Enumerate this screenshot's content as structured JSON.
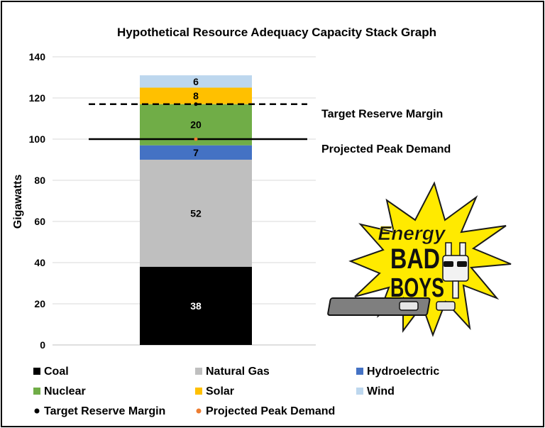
{
  "chart_data": {
    "type": "bar",
    "stacked": true,
    "title": "Hypothetical Resource Adequacy Capacity Stack Graph",
    "ylabel": "Gigawatts",
    "xlabel": "",
    "ylim": [
      0,
      140
    ],
    "yticks": [
      0,
      20,
      40,
      60,
      80,
      100,
      120,
      140
    ],
    "grid": true,
    "legend_position": "bottom",
    "series": [
      {
        "name": "Coal",
        "value": 38,
        "color": "#000000",
        "label_color": "#ffffff"
      },
      {
        "name": "Natural Gas",
        "value": 52,
        "color": "#bfbfbf",
        "label_color": "#000000"
      },
      {
        "name": "Hydroelectric",
        "value": 7,
        "color": "#4472c4",
        "label_color": "#000000"
      },
      {
        "name": "Nuclear",
        "value": 20,
        "color": "#70ad47",
        "label_color": "#000000"
      },
      {
        "name": "Solar",
        "value": 8,
        "color": "#ffc000",
        "label_color": "#000000"
      },
      {
        "name": "Wind",
        "value": 6,
        "color": "#bdd7ee",
        "label_color": "#000000"
      }
    ],
    "reference_lines": [
      {
        "name": "Target Reserve Margin",
        "value": 117,
        "style": "dashed",
        "marker_color": "#000000"
      },
      {
        "name": "Projected Peak Demand",
        "value": 100,
        "style": "solid",
        "marker_color": "#ed7d31"
      }
    ]
  },
  "logo": {
    "name": "Energy Bad Boys logo",
    "words": [
      "Energy",
      "BAD",
      "BOYS"
    ]
  }
}
